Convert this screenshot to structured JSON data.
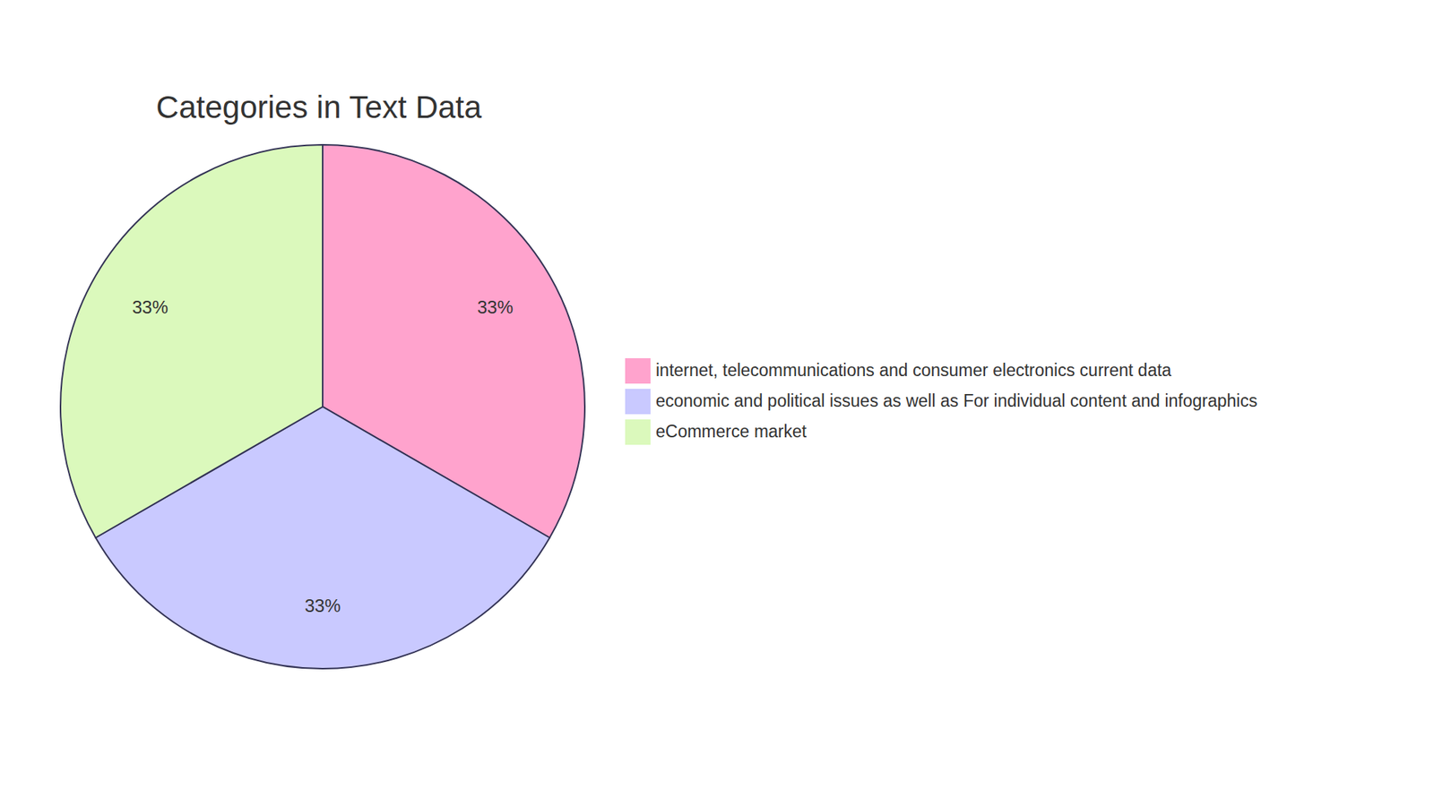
{
  "chart_data": {
    "type": "pie",
    "title": "Categories in Text Data",
    "categories": [
      "internet, telecommunications and consumer electronics current data",
      "economic and political issues as well as For individual content and infographics",
      "eCommerce market"
    ],
    "values": [
      33,
      33,
      33
    ],
    "value_labels": [
      "33%",
      "33%",
      "33%"
    ],
    "colors": [
      "#FFA3CD",
      "#C9C9FF",
      "#DBF9BC"
    ],
    "data_labels": true,
    "legend": "right"
  }
}
